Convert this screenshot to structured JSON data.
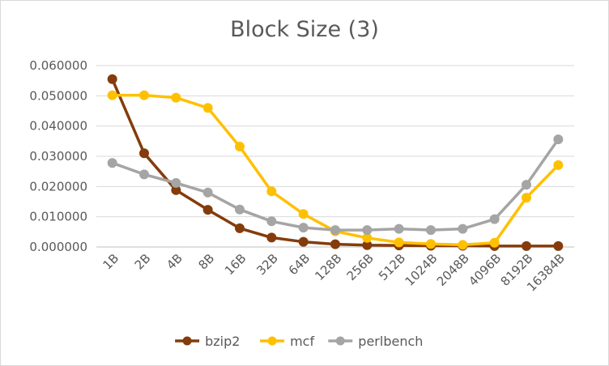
{
  "chart_data": {
    "type": "line",
    "title": "Block Size (3)",
    "xlabel": "",
    "ylabel": "",
    "categories": [
      "1B",
      "2B",
      "4B",
      "8B",
      "16B",
      "32B",
      "64B",
      "128B",
      "256B",
      "512B",
      "1024B",
      "2048B",
      "4096B",
      "8192B",
      "16384B"
    ],
    "ylim": [
      0,
      0.06
    ],
    "yticks": [
      "0.000000",
      "0.010000",
      "0.020000",
      "0.030000",
      "0.040000",
      "0.050000",
      "0.060000"
    ],
    "grid": true,
    "legend": "bottom",
    "series": [
      {
        "name": "bzip2",
        "color": "#843c0c",
        "values": [
          0.0555,
          0.031,
          0.0188,
          0.0123,
          0.0062,
          0.0031,
          0.0017,
          0.0009,
          0.0006,
          0.0005,
          0.0004,
          0.0004,
          0.0003,
          0.0003,
          0.0003
        ]
      },
      {
        "name": "mcf",
        "color": "#ffc000",
        "values": [
          0.0502,
          0.0502,
          0.0494,
          0.046,
          0.0332,
          0.0184,
          0.0109,
          0.0052,
          0.003,
          0.0015,
          0.001,
          0.0007,
          0.0014,
          0.0163,
          0.0271
        ]
      },
      {
        "name": "perlbench",
        "color": "#a5a5a5",
        "values": [
          0.0278,
          0.024,
          0.0212,
          0.018,
          0.0124,
          0.0085,
          0.0064,
          0.0056,
          0.0056,
          0.006,
          0.0056,
          0.006,
          0.0092,
          0.0206,
          0.0356
        ]
      }
    ]
  }
}
